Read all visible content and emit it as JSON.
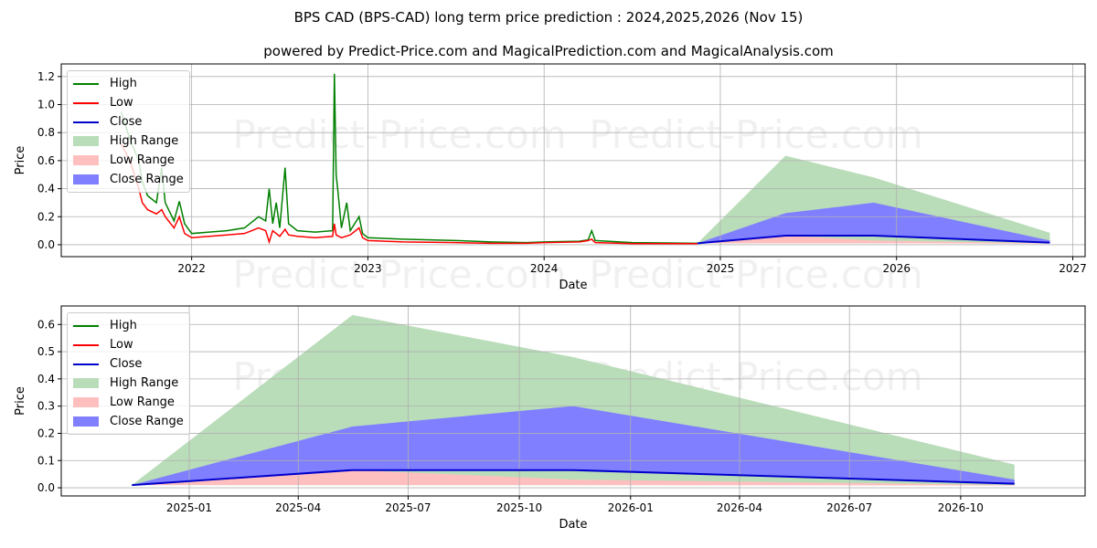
{
  "title": "BPS CAD (BPS-CAD) long term price prediction : 2024,2025,2026 (Nov 15)",
  "subtitle": "powered by Predict-Price.com and MagicalPrediction.com and MagicalAnalysis.com",
  "watermark": "Predict-Price.com",
  "colors": {
    "high": "#008000",
    "low": "#ff0000",
    "close": "#0000cc",
    "high_range": "#b9dcb9",
    "low_range": "#ffbfbf",
    "close_range": "#7f7fff"
  },
  "legend": [
    {
      "label": "High",
      "kind": "line",
      "key": "high"
    },
    {
      "label": "Low",
      "kind": "line",
      "key": "low"
    },
    {
      "label": "Close",
      "kind": "line",
      "key": "close"
    },
    {
      "label": "High Range",
      "kind": "box",
      "key": "high_range"
    },
    {
      "label": "Low Range",
      "kind": "box",
      "key": "low_range"
    },
    {
      "label": "Close Range",
      "kind": "box",
      "key": "close_range"
    }
  ],
  "chart_data": [
    {
      "type": "line",
      "xlabel": "Date",
      "ylabel": "Price",
      "xlim": [
        2021.26,
        2027.07
      ],
      "ylim": [
        -0.085,
        1.29
      ],
      "xticks": [
        {
          "v": 2022,
          "label": "2022"
        },
        {
          "v": 2023,
          "label": "2023"
        },
        {
          "v": 2024,
          "label": "2024"
        },
        {
          "v": 2025,
          "label": "2025"
        },
        {
          "v": 2026,
          "label": "2026"
        },
        {
          "v": 2027,
          "label": "2027"
        }
      ],
      "yticks": [
        {
          "v": 0,
          "label": "0.0"
        },
        {
          "v": 0.2,
          "label": "0.2"
        },
        {
          "v": 0.4,
          "label": "0.4"
        },
        {
          "v": 0.6,
          "label": "0.6"
        },
        {
          "v": 0.8,
          "label": "0.8"
        },
        {
          "v": 1.0,
          "label": "1.0"
        },
        {
          "v": 1.2,
          "label": "1.2"
        }
      ],
      "history_high": [
        [
          2021.6,
          0.95
        ],
        [
          2021.65,
          0.75
        ],
        [
          2021.7,
          0.6
        ],
        [
          2021.72,
          0.45
        ],
        [
          2021.75,
          0.35
        ],
        [
          2021.8,
          0.3
        ],
        [
          2021.83,
          0.55
        ],
        [
          2021.85,
          0.3
        ],
        [
          2021.9,
          0.17
        ],
        [
          2021.93,
          0.31
        ],
        [
          2021.96,
          0.15
        ],
        [
          2022.0,
          0.08
        ],
        [
          2022.1,
          0.09
        ],
        [
          2022.2,
          0.1
        ],
        [
          2022.3,
          0.12
        ],
        [
          2022.38,
          0.2
        ],
        [
          2022.42,
          0.17
        ],
        [
          2022.44,
          0.4
        ],
        [
          2022.46,
          0.15
        ],
        [
          2022.48,
          0.3
        ],
        [
          2022.5,
          0.12
        ],
        [
          2022.53,
          0.55
        ],
        [
          2022.55,
          0.15
        ],
        [
          2022.6,
          0.1
        ],
        [
          2022.7,
          0.09
        ],
        [
          2022.8,
          0.1
        ],
        [
          2022.81,
          1.22
        ],
        [
          2022.82,
          0.5
        ],
        [
          2022.83,
          0.38
        ],
        [
          2022.85,
          0.12
        ],
        [
          2022.88,
          0.3
        ],
        [
          2022.9,
          0.1
        ],
        [
          2022.95,
          0.2
        ],
        [
          2022.97,
          0.08
        ],
        [
          2023.0,
          0.05
        ],
        [
          2023.2,
          0.04
        ],
        [
          2023.5,
          0.03
        ],
        [
          2023.7,
          0.02
        ],
        [
          2023.9,
          0.015
        ],
        [
          2024.0,
          0.02
        ],
        [
          2024.2,
          0.025
        ],
        [
          2024.25,
          0.035
        ],
        [
          2024.27,
          0.1
        ],
        [
          2024.29,
          0.03
        ],
        [
          2024.5,
          0.015
        ],
        [
          2024.87,
          0.01
        ]
      ],
      "history_low": [
        [
          2021.6,
          0.72
        ],
        [
          2021.65,
          0.6
        ],
        [
          2021.7,
          0.4
        ],
        [
          2021.72,
          0.3
        ],
        [
          2021.75,
          0.25
        ],
        [
          2021.8,
          0.22
        ],
        [
          2021.83,
          0.25
        ],
        [
          2021.85,
          0.2
        ],
        [
          2021.9,
          0.12
        ],
        [
          2021.93,
          0.2
        ],
        [
          2021.96,
          0.08
        ],
        [
          2022.0,
          0.05
        ],
        [
          2022.1,
          0.06
        ],
        [
          2022.2,
          0.07
        ],
        [
          2022.3,
          0.08
        ],
        [
          2022.38,
          0.12
        ],
        [
          2022.42,
          0.1
        ],
        [
          2022.44,
          0.02
        ],
        [
          2022.46,
          0.1
        ],
        [
          2022.5,
          0.06
        ],
        [
          2022.53,
          0.11
        ],
        [
          2022.55,
          0.07
        ],
        [
          2022.6,
          0.06
        ],
        [
          2022.7,
          0.05
        ],
        [
          2022.8,
          0.06
        ],
        [
          2022.81,
          0.15
        ],
        [
          2022.82,
          0.07
        ],
        [
          2022.85,
          0.05
        ],
        [
          2022.9,
          0.07
        ],
        [
          2022.95,
          0.12
        ],
        [
          2022.97,
          0.05
        ],
        [
          2023.0,
          0.03
        ],
        [
          2023.2,
          0.02
        ],
        [
          2023.5,
          0.015
        ],
        [
          2023.7,
          0.01
        ],
        [
          2023.9,
          0.01
        ],
        [
          2024.0,
          0.015
        ],
        [
          2024.2,
          0.02
        ],
        [
          2024.25,
          0.03
        ],
        [
          2024.27,
          0.04
        ],
        [
          2024.29,
          0.015
        ],
        [
          2024.5,
          0.008
        ],
        [
          2024.87,
          0.008
        ]
      ]
    },
    {
      "type": "area",
      "xlabel": "Date",
      "ylabel": "Price",
      "xlim": [
        2024.71,
        2027.03
      ],
      "ylim": [
        -0.03,
        0.668
      ],
      "xticks": [
        {
          "v": 2025.0,
          "label": "2025-01"
        },
        {
          "v": 2025.247,
          "label": "2025-04"
        },
        {
          "v": 2025.496,
          "label": "2025-07"
        },
        {
          "v": 2025.748,
          "label": "2025-10"
        },
        {
          "v": 2026.0,
          "label": "2026-01"
        },
        {
          "v": 2026.247,
          "label": "2026-04"
        },
        {
          "v": 2026.496,
          "label": "2026-07"
        },
        {
          "v": 2026.748,
          "label": "2026-10"
        }
      ],
      "yticks": [
        {
          "v": 0,
          "label": "0.0"
        },
        {
          "v": 0.1,
          "label": "0.1"
        },
        {
          "v": 0.2,
          "label": "0.2"
        },
        {
          "v": 0.3,
          "label": "0.3"
        },
        {
          "v": 0.4,
          "label": "0.4"
        },
        {
          "v": 0.5,
          "label": "0.5"
        },
        {
          "v": 0.6,
          "label": "0.6"
        }
      ]
    }
  ],
  "prediction": {
    "x": [
      2024.87,
      2025.37,
      2025.87,
      2026.87
    ],
    "dates": [
      "2024-11-15",
      "2025-05-15",
      "2025-11-15",
      "2026-11-15"
    ],
    "high_range": {
      "low": [
        0.01,
        0.01,
        0.01,
        0.01
      ],
      "high": [
        0.01,
        0.635,
        0.48,
        0.085
      ]
    },
    "close_range": {
      "low": [
        0.01,
        0.065,
        0.065,
        0.015
      ],
      "high": [
        0.01,
        0.225,
        0.3,
        0.03
      ]
    },
    "low_range": {
      "low": [
        0.01,
        0.01,
        0.01,
        0.008
      ],
      "high": [
        0.01,
        0.065,
        0.03,
        0.01
      ]
    },
    "close": [
      0.01,
      0.065,
      0.065,
      0.015
    ]
  }
}
